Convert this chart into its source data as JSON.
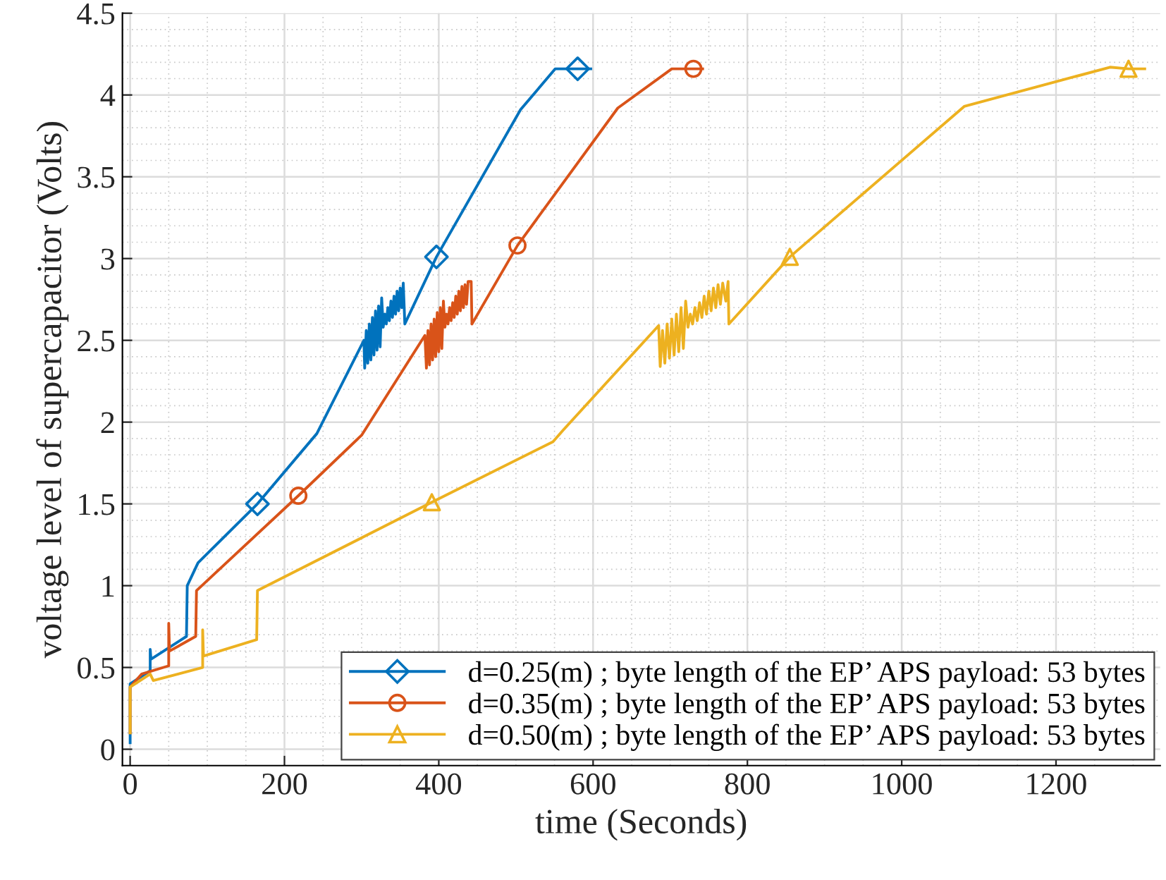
{
  "chart_data": {
    "type": "line",
    "xlabel": "time (Seconds)",
    "ylabel": "voltage level of supercapacitor (Volts)",
    "xlim": [
      -10,
      1335
    ],
    "ylim": [
      -0.1,
      4.5
    ],
    "xticks": [
      0,
      200,
      400,
      600,
      800,
      1000,
      1200
    ],
    "yticks": [
      0,
      0.5,
      1,
      1.5,
      2,
      2.5,
      3,
      3.5,
      4,
      4.5
    ],
    "grid": true,
    "legend": "bottom right",
    "line_style": "solid",
    "series": [
      {
        "name": "d=0.25(m) ; byte length of the EP’ APS payload: 53 bytes",
        "color": "#0072bd",
        "marker": "none",
        "x": [
          0,
          0,
          26,
          26,
          27,
          73,
          74,
          88,
          165,
          242,
          303,
          304,
          306,
          308,
          310,
          312,
          314,
          316,
          318,
          320,
          322,
          324,
          326,
          328,
          330,
          332,
          334,
          336,
          338,
          340,
          342,
          344,
          346,
          348,
          350,
          352,
          354,
          356,
          397,
          506,
          551,
          580,
          597
        ],
        "values": [
          0.04,
          0.4,
          0.48,
          0.61,
          0.55,
          0.69,
          1.0,
          1.14,
          1.5,
          1.93,
          2.5,
          2.33,
          2.56,
          2.36,
          2.6,
          2.38,
          2.64,
          2.41,
          2.68,
          2.44,
          2.71,
          2.46,
          2.76,
          2.58,
          2.66,
          2.6,
          2.7,
          2.62,
          2.74,
          2.64,
          2.77,
          2.66,
          2.8,
          2.68,
          2.82,
          2.7,
          2.85,
          2.6,
          3.01,
          3.91,
          4.16,
          4.16,
          4.16
        ]
      },
      {
        "name": "d=0.35(m) ; byte length of the EP’ APS payload: 53 bytes",
        "color": "#d95319",
        "marker": "none",
        "x": [
          0,
          0,
          15,
          50,
          50,
          51,
          85,
          86,
          218,
          300,
          382,
          384,
          386,
          388,
          390,
          392,
          394,
          396,
          398,
          400,
          402,
          404,
          406,
          408,
          410,
          412,
          414,
          416,
          418,
          420,
          422,
          424,
          426,
          428,
          430,
          432,
          434,
          436,
          438,
          442,
          443,
          502,
          632,
          702,
          730,
          742
        ],
        "values": [
          0.1,
          0.38,
          0.46,
          0.51,
          0.77,
          0.6,
          0.69,
          0.97,
          1.55,
          1.92,
          2.53,
          2.33,
          2.56,
          2.35,
          2.6,
          2.38,
          2.63,
          2.4,
          2.67,
          2.43,
          2.7,
          2.45,
          2.74,
          2.58,
          2.66,
          2.6,
          2.7,
          2.62,
          2.73,
          2.64,
          2.77,
          2.66,
          2.8,
          2.68,
          2.83,
          2.7,
          2.84,
          2.72,
          2.86,
          2.86,
          2.6,
          3.08,
          3.92,
          4.16,
          4.16,
          4.16
        ]
      },
      {
        "name": "d=0.50(m) ; byte length of the EP’ APS payload: 53 bytes",
        "color": "#edb120",
        "marker": "none",
        "x": [
          0,
          0,
          26,
          30,
          94,
          94,
          95,
          164,
          165,
          391,
          548,
          561,
          685,
          687,
          690,
          693,
          696,
          699,
          702,
          705,
          708,
          711,
          714,
          717,
          720,
          723,
          726,
          729,
          732,
          735,
          738,
          741,
          744,
          747,
          750,
          753,
          756,
          759,
          762,
          765,
          768,
          772,
          775,
          776,
          855,
          1081,
          1270,
          1294,
          1315
        ],
        "values": [
          0.1,
          0.38,
          0.46,
          0.42,
          0.5,
          0.73,
          0.57,
          0.67,
          0.97,
          1.51,
          1.88,
          1.95,
          2.59,
          2.34,
          2.56,
          2.36,
          2.6,
          2.39,
          2.63,
          2.41,
          2.66,
          2.43,
          2.7,
          2.45,
          2.74,
          2.58,
          2.66,
          2.6,
          2.7,
          2.62,
          2.73,
          2.64,
          2.77,
          2.66,
          2.8,
          2.68,
          2.82,
          2.7,
          2.84,
          2.72,
          2.85,
          2.74,
          2.86,
          2.6,
          3.01,
          3.93,
          4.17,
          4.16,
          4.16
        ]
      },
      {
        "type": "scatter",
        "color": "#0072bd",
        "marker": "diamond",
        "x": [
          165,
          397,
          580
        ],
        "values": [
          1.5,
          3.01,
          4.16
        ]
      },
      {
        "type": "scatter",
        "color": "#d95319",
        "marker": "circle",
        "x": [
          218,
          502,
          730
        ],
        "values": [
          1.55,
          3.08,
          4.16
        ]
      },
      {
        "type": "scatter",
        "color": "#edb120",
        "marker": "triangle",
        "x": [
          391,
          855,
          1294
        ],
        "values": [
          1.51,
          3.01,
          4.16
        ]
      }
    ]
  }
}
